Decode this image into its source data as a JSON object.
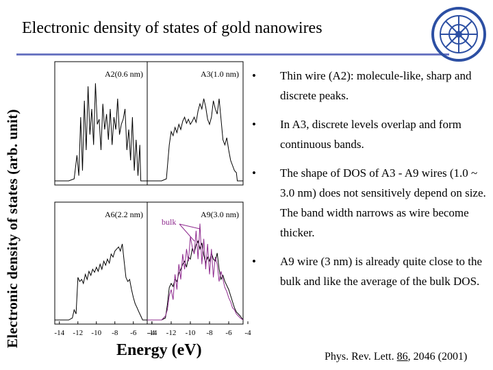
{
  "slide": {
    "title": "Electronic density of states of gold nanowires",
    "y_axis_label": "Electronic density of states (arb. unit)",
    "x_axis_label": "Energy (eV)",
    "reference": {
      "prefix": "Phys. Rev. Lett. ",
      "volume": "86",
      "suffix": ", 2046 (2001)"
    },
    "bullets": [
      {
        "marker": "•",
        "text": "Thin wire (A2): molecule-like, sharp and discrete peaks."
      },
      {
        "marker": "•",
        "text": "In A3, discrete levels overlap and form continuous bands."
      },
      {
        "marker": "•",
        "text": "The shape of DOS of A3 - A9 wires (1.0 ~ 3.0 nm) does not sensitively depend on size. The band width narrows as wire become thicker."
      },
      {
        "marker": "•",
        "text": "A9 wire (3 nm) is already quite close to the bulk and like the average of the bulk DOS."
      }
    ],
    "colors": {
      "rule": "#6b76c2",
      "bulk": "#8e2a8e",
      "wire": "#000000"
    }
  },
  "chart_data": [
    {
      "type": "line",
      "panel": "top-left",
      "label": "A2(0.6 nm)",
      "x": [
        -14.5,
        -13,
        -12.4,
        -12.1,
        -11.9,
        -11.7,
        -11.5,
        -11.3,
        -11.1,
        -10.9,
        -10.7,
        -10.5,
        -10.3,
        -10.1,
        -9.9,
        -9.7,
        -9.5,
        -9.3,
        -9.1,
        -8.9,
        -8.7,
        -8.5,
        -8.3,
        -8.1,
        -7.9,
        -7.7,
        -7.5,
        -7.3,
        -7.1,
        -6.9,
        -6.7,
        -6.5,
        -6.3,
        -6.1,
        -5.9,
        -5.7,
        -5.5,
        -5.3,
        -5.2,
        -4.5
      ],
      "y": [
        0,
        0,
        0.02,
        0.25,
        0.05,
        0.62,
        0.1,
        0.78,
        0.3,
        0.92,
        0.45,
        0.7,
        0.35,
        0.95,
        0.55,
        0.6,
        0.3,
        0.75,
        0.5,
        0.65,
        0.4,
        0.7,
        0.35,
        0.62,
        0.5,
        0.8,
        0.45,
        0.55,
        0.6,
        0.7,
        0.3,
        0.5,
        0.2,
        0.62,
        0.1,
        0.4,
        0.05,
        0.35,
        0,
        0
      ],
      "xlim": [
        -14.5,
        -4.5
      ],
      "ylim": [
        0,
        1
      ]
    },
    {
      "type": "line",
      "panel": "top-right",
      "label": "A3(1.0 nm)",
      "x": [
        -14.5,
        -13,
        -12.5,
        -12.2,
        -12,
        -11.8,
        -11.6,
        -11.4,
        -11.2,
        -11,
        -10.8,
        -10.6,
        -10.4,
        -10.2,
        -10,
        -9.8,
        -9.6,
        -9.4,
        -9.2,
        -9,
        -8.8,
        -8.6,
        -8.4,
        -8.2,
        -8,
        -7.8,
        -7.6,
        -7.4,
        -7.2,
        -7,
        -6.8,
        -6.6,
        -6.4,
        -6.2,
        -6,
        -5.8,
        -5.6,
        -5.4,
        -5.2,
        -5.1,
        -4.5
      ],
      "y": [
        0,
        0,
        0.02,
        0.35,
        0.48,
        0.44,
        0.52,
        0.47,
        0.55,
        0.5,
        0.58,
        0.62,
        0.56,
        0.6,
        0.55,
        0.58,
        0.62,
        0.57,
        0.68,
        0.75,
        0.7,
        0.8,
        0.72,
        0.6,
        0.55,
        0.62,
        0.78,
        0.7,
        0.65,
        0.8,
        0.6,
        0.4,
        0.35,
        0.42,
        0.3,
        0.2,
        0.15,
        0.1,
        0.08,
        0,
        0
      ],
      "xlim": [
        -14.5,
        -4.5
      ],
      "ylim": [
        0,
        1
      ]
    },
    {
      "type": "line",
      "panel": "bottom-left",
      "label": "A6(2.2 nm)",
      "x": [
        -14.5,
        -13,
        -12.6,
        -12.4,
        -12.2,
        -12,
        -11.8,
        -11.6,
        -11.4,
        -11.2,
        -11,
        -10.8,
        -10.6,
        -10.4,
        -10.2,
        -10,
        -9.8,
        -9.6,
        -9.4,
        -9.2,
        -9,
        -8.8,
        -8.6,
        -8.4,
        -8.2,
        -8,
        -7.8,
        -7.6,
        -7.4,
        -7.2,
        -7,
        -6.8,
        -6.6,
        -6.4,
        -6.2,
        -6,
        -5.8,
        -5.6,
        -5.4,
        -5.2,
        -5,
        -4.5
      ],
      "y": [
        0,
        0,
        0.02,
        0.1,
        0.06,
        0.42,
        0.38,
        0.4,
        0.36,
        0.45,
        0.4,
        0.48,
        0.44,
        0.5,
        0.47,
        0.52,
        0.48,
        0.55,
        0.5,
        0.58,
        0.54,
        0.6,
        0.56,
        0.65,
        0.62,
        0.68,
        0.7,
        0.72,
        0.68,
        0.75,
        0.58,
        0.42,
        0.38,
        0.4,
        0.3,
        0.22,
        0.16,
        0.12,
        0.08,
        0.04,
        0,
        0
      ],
      "xlim": [
        -14.5,
        -4.5
      ],
      "ylim": [
        0,
        1
      ]
    },
    {
      "type": "line",
      "panel": "bottom-right",
      "label": "A9(3.0 nm)",
      "annotation": "bulk",
      "x": [
        -14.5,
        -13,
        -12.6,
        -12.4,
        -12.2,
        -12,
        -11.8,
        -11.6,
        -11.4,
        -11.2,
        -11,
        -10.8,
        -10.6,
        -10.4,
        -10.2,
        -10,
        -9.8,
        -9.6,
        -9.4,
        -9.2,
        -9,
        -8.8,
        -8.6,
        -8.4,
        -8.2,
        -8,
        -7.8,
        -7.6,
        -7.4,
        -7.2,
        -7,
        -6.8,
        -6.6,
        -6.4,
        -6.2,
        -6,
        -5.8,
        -5.6,
        -5.4,
        -5.2,
        -5,
        -4.8,
        -4.5
      ],
      "series": [
        {
          "values": [
            0,
            0,
            0.02,
            0.15,
            0.32,
            0.36,
            0.33,
            0.4,
            0.38,
            0.46,
            0.5,
            0.55,
            0.58,
            0.52,
            0.62,
            0.6,
            0.7,
            0.66,
            0.74,
            0.78,
            0.7,
            0.76,
            0.64,
            0.56,
            0.62,
            0.58,
            0.66,
            0.6,
            0.58,
            0.66,
            0.5,
            0.4,
            0.44,
            0.38,
            0.34,
            0.3,
            0.24,
            0.18,
            0.12,
            0.08,
            0.06,
            0.04,
            0
          ],
          "color": "#000000"
        },
        {
          "values": [
            0,
            0,
            0.04,
            0.1,
            0.24,
            0.3,
            0.2,
            0.45,
            0.3,
            0.55,
            0.4,
            0.65,
            0.5,
            0.7,
            0.58,
            0.82,
            0.72,
            0.65,
            0.88,
            0.6,
            0.95,
            0.55,
            0.8,
            0.5,
            0.75,
            0.45,
            0.7,
            0.42,
            0.62,
            0.55,
            0.38,
            0.48,
            0.4,
            0.32,
            0.28,
            0.22,
            0.18,
            0.12,
            0.1,
            0.06,
            0.04,
            0.02,
            0
          ],
          "color": "#8e2a8e"
        }
      ],
      "xlim": [
        -14.5,
        -4.5
      ],
      "ylim": [
        0,
        1
      ]
    }
  ],
  "x_ticks": [
    "-14",
    "-12",
    "-10",
    "-8",
    "-6",
    "-4"
  ],
  "x_tick_values": [
    -14,
    -12,
    -10,
    -8,
    -6,
    -4
  ]
}
